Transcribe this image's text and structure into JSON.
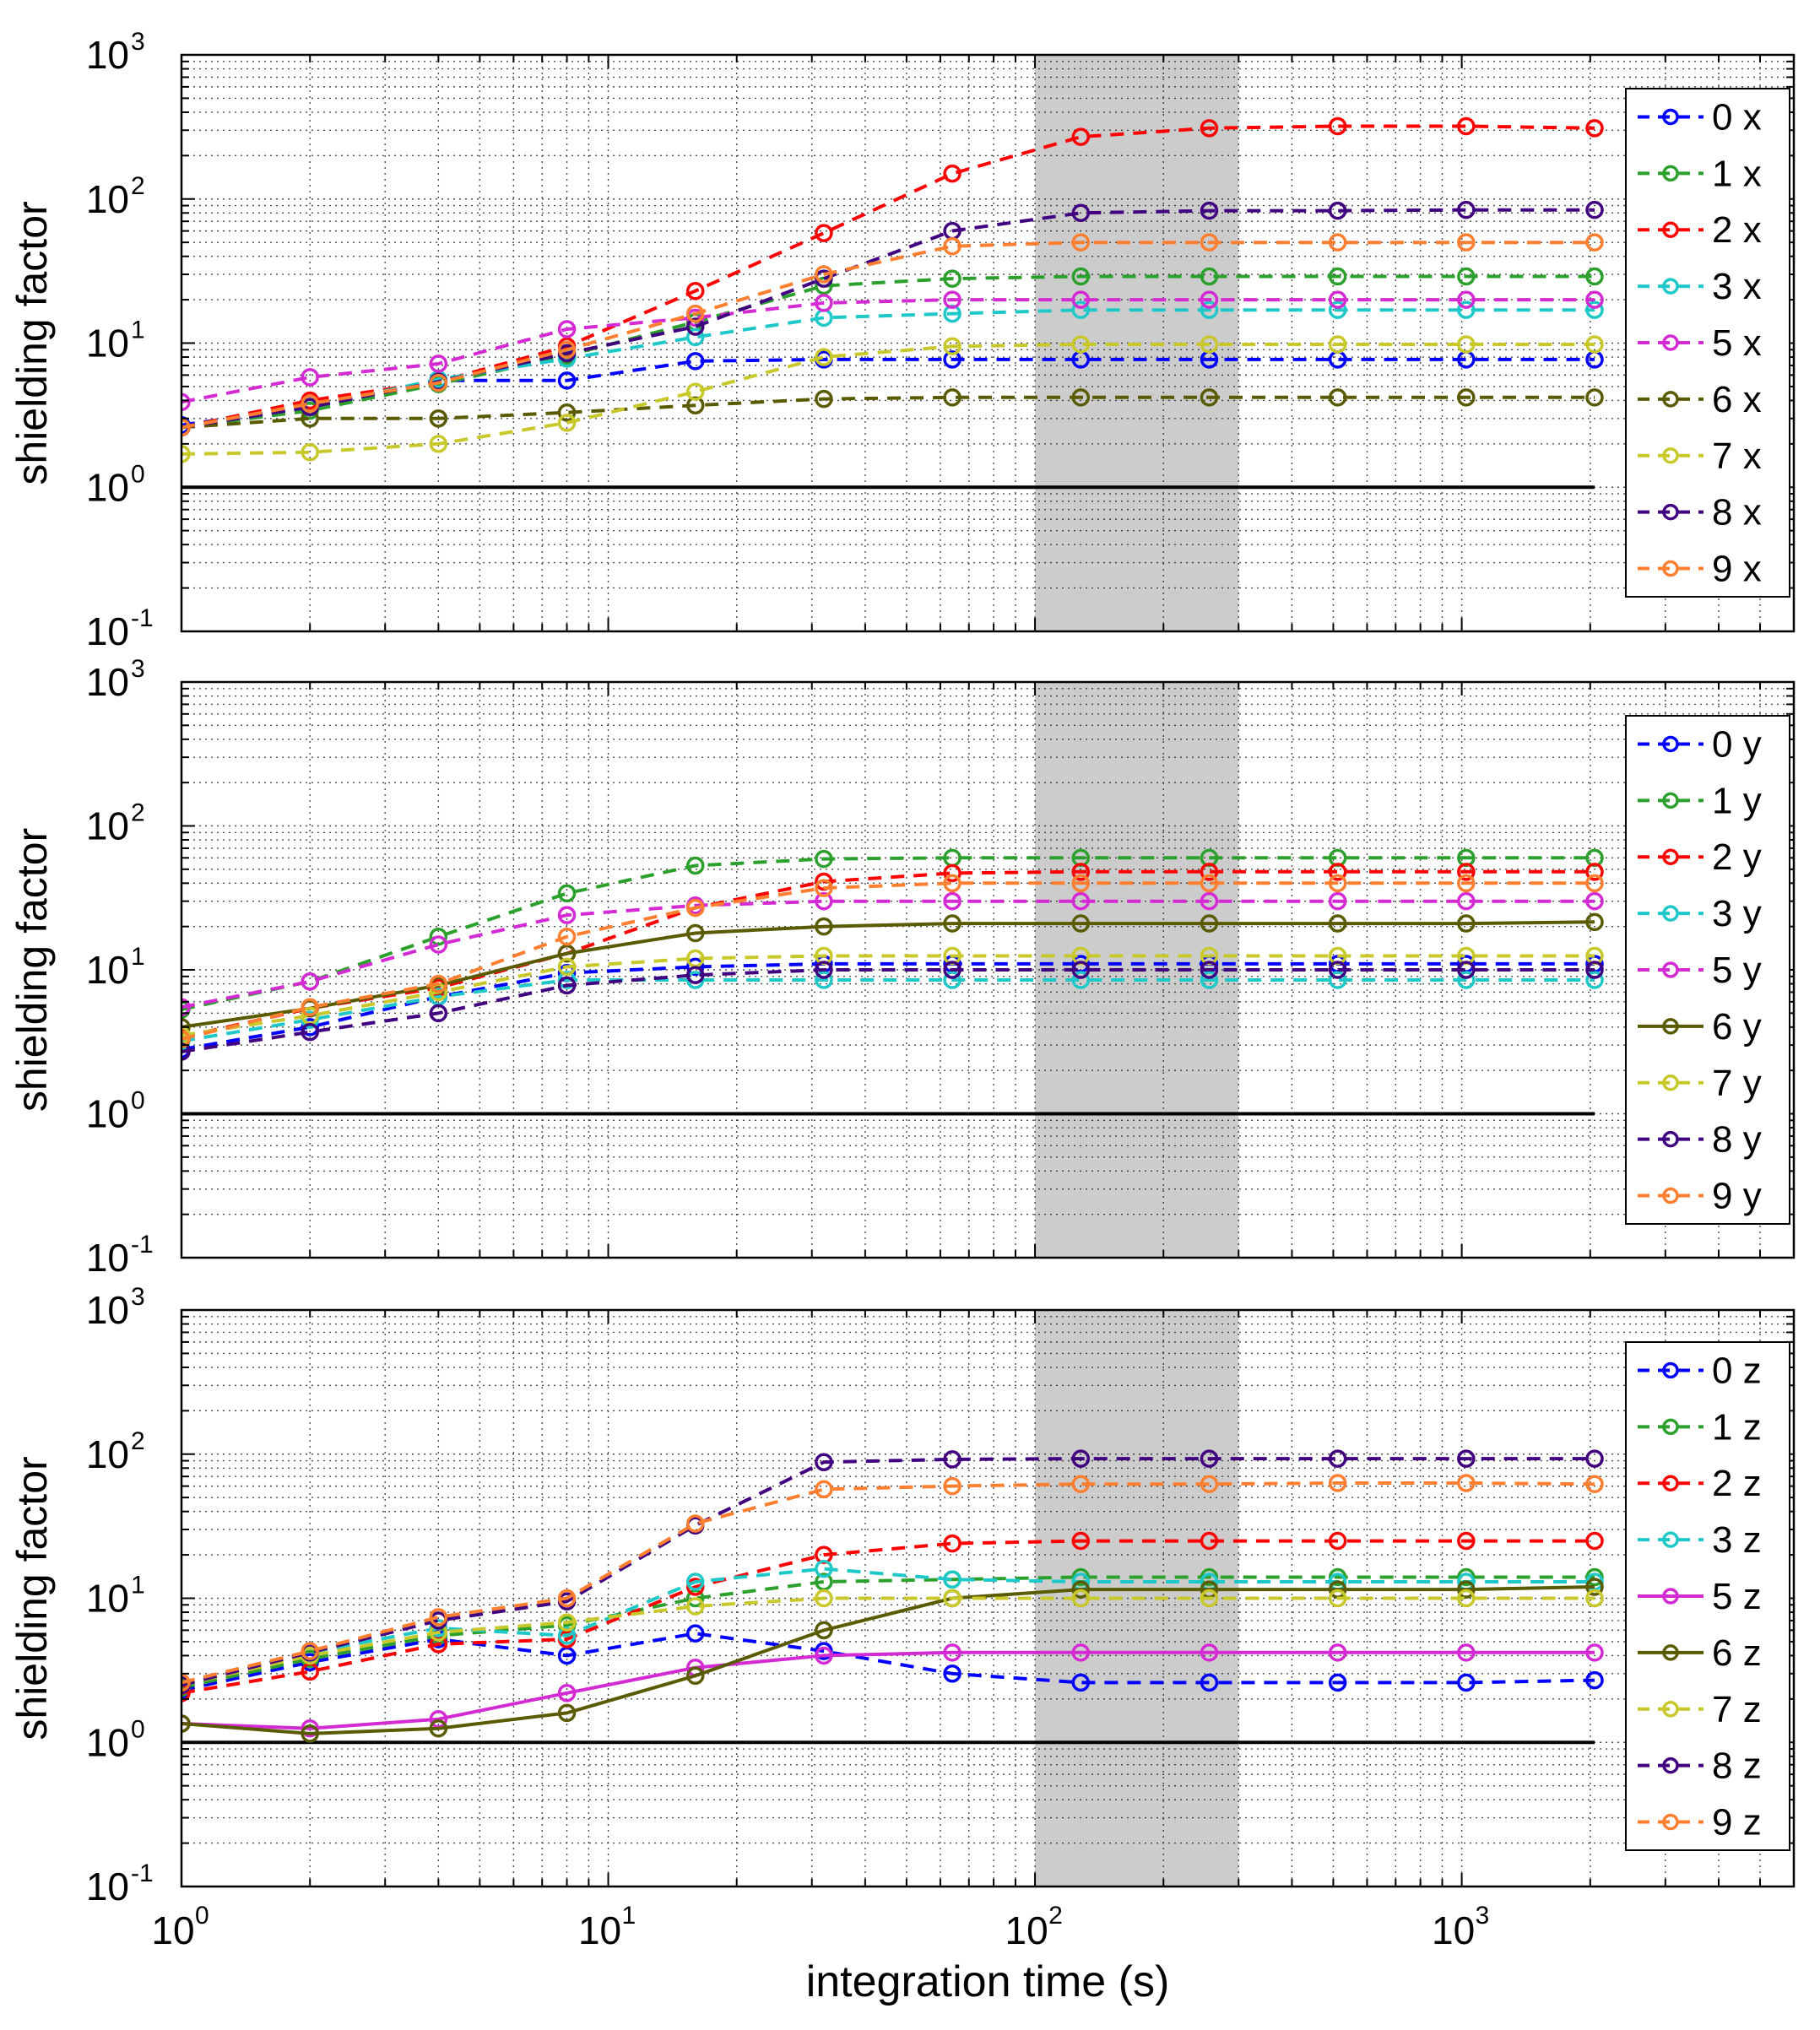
{
  "chart_data": [
    {
      "type": "line",
      "panel": "x",
      "xscale": "log",
      "yscale": "log",
      "xlim": [
        1,
        6000
      ],
      "ylim": [
        0.1,
        1000
      ],
      "x": [
        1,
        2,
        4,
        8,
        16,
        32,
        64,
        128,
        256,
        512,
        1024,
        2048
      ],
      "xlabel": "",
      "ylabel": "shielding factor",
      "grid": true,
      "legend_position": "right",
      "highlight_band": [
        100,
        300
      ],
      "reference_line": 1,
      "series": [
        {
          "name": "0 x",
          "color": "#0000ff",
          "dash": true,
          "values": [
            2.7,
            3.6,
            5.5,
            5.5,
            7.5,
            7.7,
            7.7,
            7.7,
            7.7,
            7.7,
            7.7,
            7.7
          ]
        },
        {
          "name": "1 x",
          "color": "#2ca02c",
          "dash": true,
          "values": [
            2.6,
            3.4,
            5.2,
            8.2,
            14,
            25,
            28,
            29,
            29,
            29,
            29,
            29
          ]
        },
        {
          "name": "2 x",
          "color": "#ff0000",
          "dash": true,
          "values": [
            2.6,
            4.0,
            5.4,
            9.5,
            23,
            58,
            150,
            270,
            310,
            320,
            320,
            310
          ]
        },
        {
          "name": "3 x",
          "color": "#1fc8c8",
          "dash": true,
          "values": [
            2.6,
            3.6,
            5.6,
            7.8,
            11,
            15,
            16,
            17,
            17,
            17,
            17,
            17
          ]
        },
        {
          "name": "5 x",
          "color": "#d42ad4",
          "dash": true,
          "values": [
            3.9,
            5.8,
            7.2,
            12.5,
            15,
            19,
            20,
            20,
            20,
            20,
            20,
            20
          ]
        },
        {
          "name": "6 x",
          "color": "#5a5a00",
          "dash": true,
          "values": [
            2.6,
            3.0,
            3.0,
            3.3,
            3.7,
            4.1,
            4.2,
            4.2,
            4.2,
            4.2,
            4.2,
            4.2
          ]
        },
        {
          "name": "7 x",
          "color": "#c8c82a",
          "dash": true,
          "values": [
            1.7,
            1.75,
            2.0,
            2.8,
            4.6,
            8.0,
            9.5,
            9.8,
            9.8,
            9.8,
            9.8,
            9.8
          ]
        },
        {
          "name": "8 x",
          "color": "#400080",
          "dash": true,
          "values": [
            2.6,
            3.6,
            5.4,
            8.5,
            13,
            28,
            60,
            80,
            83,
            83,
            84,
            84
          ]
        },
        {
          "name": "9 x",
          "color": "#ff7f30",
          "dash": true,
          "values": [
            2.6,
            3.8,
            5.3,
            9.0,
            16,
            30,
            47,
            50,
            50,
            50,
            50,
            50
          ]
        }
      ]
    },
    {
      "type": "line",
      "panel": "y",
      "xscale": "log",
      "yscale": "log",
      "xlim": [
        1,
        6000
      ],
      "ylim": [
        0.1,
        1000
      ],
      "x": [
        1,
        2,
        4,
        8,
        16,
        32,
        64,
        128,
        256,
        512,
        1024,
        2048
      ],
      "xlabel": "",
      "ylabel": "shielding factor",
      "grid": true,
      "legend_position": "right",
      "highlight_band": [
        100,
        300
      ],
      "reference_line": 1,
      "series": [
        {
          "name": "0 y",
          "color": "#0000ff",
          "dash": true,
          "values": [
            2.8,
            4.0,
            6.5,
            9.5,
            10.5,
            11,
            11,
            11,
            11,
            11,
            11,
            11
          ]
        },
        {
          "name": "1 y",
          "color": "#2ca02c",
          "dash": true,
          "values": [
            5.3,
            8.3,
            17,
            34,
            53,
            59,
            60,
            60,
            60,
            60,
            60,
            60
          ]
        },
        {
          "name": "2 y",
          "color": "#ff0000",
          "dash": true,
          "values": [
            3.4,
            5.4,
            7.5,
            13,
            27,
            41,
            47,
            48,
            48,
            48,
            48,
            48
          ]
        },
        {
          "name": "3 y",
          "color": "#1fc8c8",
          "dash": true,
          "values": [
            3.2,
            4.5,
            6.5,
            8.5,
            8.5,
            8.5,
            8.5,
            8.5,
            8.5,
            8.5,
            8.5,
            8.5
          ]
        },
        {
          "name": "5 y",
          "color": "#d42ad4",
          "dash": true,
          "values": [
            5.5,
            8.3,
            15,
            24,
            28,
            30,
            30,
            30,
            30,
            30,
            30,
            30
          ]
        },
        {
          "name": "6 y",
          "color": "#5a5a00",
          "dash": false,
          "values": [
            4.0,
            5.4,
            7.8,
            13,
            18,
            20,
            21,
            21,
            21,
            21,
            21,
            21.5
          ]
        },
        {
          "name": "7 y",
          "color": "#c8c82a",
          "dash": true,
          "values": [
            3.5,
            4.8,
            7.0,
            10.5,
            12,
            12.5,
            12.5,
            12.5,
            12.5,
            12.5,
            12.5,
            12.5
          ]
        },
        {
          "name": "8 y",
          "color": "#400080",
          "dash": true,
          "values": [
            2.7,
            3.7,
            5.0,
            7.8,
            9.2,
            10,
            10,
            10,
            10,
            10,
            10,
            10
          ]
        },
        {
          "name": "9 y",
          "color": "#ff7f30",
          "dash": true,
          "values": [
            3.3,
            5.5,
            8.0,
            17,
            27,
            37,
            40,
            40,
            40,
            40,
            40,
            40
          ]
        }
      ]
    },
    {
      "type": "line",
      "panel": "z",
      "xscale": "log",
      "yscale": "log",
      "xlim": [
        1,
        6000
      ],
      "ylim": [
        0.1,
        1000
      ],
      "x": [
        1,
        2,
        4,
        8,
        16,
        32,
        64,
        128,
        256,
        512,
        1024,
        2048
      ],
      "xlabel": "integration time (s)",
      "ylabel": "shielding factor",
      "grid": true,
      "legend_position": "right",
      "highlight_band": [
        100,
        300
      ],
      "reference_line": 1,
      "series": [
        {
          "name": "0 z",
          "color": "#0000ff",
          "dash": true,
          "values": [
            2.3,
            3.6,
            5.2,
            4.0,
            5.7,
            4.3,
            3.0,
            2.6,
            2.6,
            2.6,
            2.6,
            2.7
          ]
        },
        {
          "name": "1 z",
          "color": "#2ca02c",
          "dash": true,
          "values": [
            2.4,
            3.8,
            5.5,
            6.5,
            10,
            13,
            13.5,
            14,
            14,
            14,
            14,
            14
          ]
        },
        {
          "name": "2 z",
          "color": "#ff0000",
          "dash": true,
          "values": [
            2.2,
            3.1,
            4.8,
            5.2,
            12,
            20,
            24,
            25,
            25,
            25,
            25,
            25
          ]
        },
        {
          "name": "3 z",
          "color": "#1fc8c8",
          "dash": true,
          "values": [
            2.5,
            4.2,
            6.2,
            5.5,
            13,
            16,
            13.5,
            13,
            13,
            13,
            13,
            13
          ]
        },
        {
          "name": "5 z",
          "color": "#d42ad4",
          "dash": false,
          "values": [
            1.35,
            1.25,
            1.45,
            2.2,
            3.3,
            4.0,
            4.2,
            4.2,
            4.2,
            4.2,
            4.2,
            4.2
          ]
        },
        {
          "name": "6 z",
          "color": "#5a5a00",
          "dash": false,
          "values": [
            1.35,
            1.15,
            1.25,
            1.6,
            2.9,
            6.0,
            10,
            11.5,
            11.5,
            11.5,
            11.5,
            12
          ]
        },
        {
          "name": "7 z",
          "color": "#c8c82a",
          "dash": true,
          "values": [
            2.5,
            4.0,
            5.8,
            6.8,
            8.8,
            10,
            10,
            10,
            10,
            10,
            10,
            10
          ]
        },
        {
          "name": "8 z",
          "color": "#400080",
          "dash": true,
          "values": [
            2.5,
            4.2,
            7.0,
            9.5,
            32,
            88,
            92,
            93,
            93,
            93,
            93,
            93
          ]
        },
        {
          "name": "9 z",
          "color": "#ff7f30",
          "dash": true,
          "values": [
            2.6,
            4.3,
            7.4,
            10,
            33,
            57,
            60,
            62,
            62,
            63,
            63,
            62
          ]
        }
      ]
    }
  ]
}
